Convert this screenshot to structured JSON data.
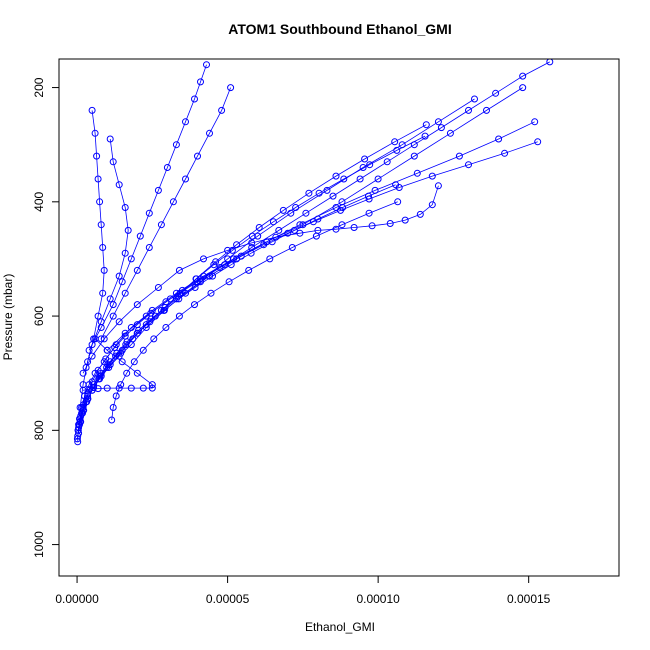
{
  "chart_data": {
    "type": "scatter",
    "title": "ATOM1 Southbound Ethanol_GMI",
    "xlabel": "Ethanol_GMI",
    "ylabel": "Pressure (mbar)",
    "xlim": [
      -6e-06,
      0.00018
    ],
    "ylim": [
      1055,
      150
    ],
    "y_reversed": true,
    "x_ticks": [
      0,
      5e-05,
      0.0001,
      0.00015
    ],
    "x_tick_labels": [
      "0.00000",
      "0.00005",
      "0.00010",
      "0.00015"
    ],
    "y_ticks": [
      200,
      400,
      600,
      800,
      1000
    ],
    "y_tick_labels": [
      "200",
      "400",
      "600",
      "800",
      "1000"
    ],
    "marker": "open-circle",
    "connect_points": true,
    "color": "#0000ff",
    "series": [
      {
        "x": [
          2e-07,
          4e-07,
          8e-07,
          1.5e-06,
          2.5e-06,
          4e-06,
          6e-06,
          9e-06,
          1.3e-05,
          1.8e-05,
          2.5e-05,
          3.3e-05,
          4.2e-05,
          5.2e-05,
          6.3e-05,
          7.5e-05,
          8.8e-05,
          0.0001,
          0.000112,
          0.000124,
          0.000136,
          0.000148
        ],
        "y": [
          820,
          800,
          780,
          760,
          740,
          720,
          700,
          680,
          650,
          620,
          590,
          560,
          530,
          500,
          470,
          440,
          400,
          360,
          320,
          280,
          240,
          200
        ]
      },
      {
        "x": [
          3e-07,
          1e-06,
          2e-06,
          3.5e-06,
          5.5e-06,
          8e-06,
          1.1e-05,
          1.5e-05,
          2e-05,
          2.6e-05,
          3.3e-05,
          4.1e-05,
          5e-05,
          6e-05,
          7.1e-05,
          8.3e-05,
          9.5e-05,
          0.000108,
          0.00012,
          0.000132
        ],
        "y": [
          800,
          780,
          760,
          740,
          720,
          700,
          680,
          660,
          630,
          600,
          570,
          540,
          500,
          460,
          420,
          380,
          340,
          300,
          260,
          220
        ]
      },
      {
        "x": [
          5e-07,
          1.5e-06,
          3e-06,
          5e-06,
          7.5e-06,
          1.05e-05,
          1.4e-05,
          1.8e-05,
          2.3e-05,
          2.9e-05,
          3.6e-05,
          4.4e-05,
          5.3e-05,
          6.3e-05,
          7.4e-05,
          8.6e-05,
          9.9e-05,
          0.000113,
          0.000127,
          0.00014,
          0.000152
        ],
        "y": [
          790,
          770,
          750,
          730,
          710,
          690,
          670,
          650,
          620,
          590,
          560,
          530,
          500,
          470,
          440,
          410,
          380,
          350,
          320,
          290,
          260
        ]
      },
      {
        "x": [
          1e-07,
          5e-07,
          1.2e-06,
          2.2e-06,
          3.5e-06,
          5e-06,
          7e-06,
          9.5e-06,
          1.25e-05,
          1.6e-05,
          2e-05,
          2.45e-05,
          2.95e-05,
          3.5e-05,
          4.1e-05,
          4.75e-05,
          5.45e-05,
          6.2e-05,
          7e-05,
          7.85e-05,
          8.75e-05,
          9.7e-05,
          0.000107,
          0.000118,
          0.00013,
          0.000142,
          0.000153
        ],
        "y": [
          815,
          795,
          775,
          755,
          735,
          715,
          695,
          675,
          655,
          635,
          615,
          595,
          575,
          555,
          535,
          515,
          495,
          475,
          455,
          435,
          415,
          395,
          375,
          355,
          335,
          315,
          295
        ]
      },
      {
        "x": [
          1e-06,
          2e-06,
          3.5e-06,
          5.5e-06,
          8e-06,
          1.1e-05,
          1.45e-05,
          1.85e-05,
          2.3e-05,
          2.8e-05,
          3.35e-05,
          3.95e-05,
          4.6e-05,
          5.3e-05,
          6.05e-05,
          6.85e-05,
          7.7e-05,
          8.6e-05,
          9.55e-05,
          0.0001055,
          0.000116
        ],
        "y": [
          785,
          765,
          745,
          725,
          705,
          685,
          665,
          640,
          615,
          590,
          565,
          535,
          505,
          475,
          445,
          415,
          385,
          355,
          325,
          295,
          265
        ]
      },
      {
        "x": [
          5e-07,
          1.2e-06,
          2.2e-06,
          3.6e-06,
          5.4e-06,
          7.6e-06,
          1.02e-05,
          1.32e-05,
          1.66e-05,
          2.04e-05,
          2.46e-05,
          2.92e-05,
          3.42e-05,
          3.96e-05,
          4.54e-05,
          5.16e-05,
          5.82e-05,
          6.52e-05,
          7.26e-05,
          8.04e-05,
          8.86e-05,
          9.72e-05,
          0.0001062,
          0.0001156
        ],
        "y": [
          805,
          785,
          765,
          745,
          725,
          705,
          685,
          665,
          645,
          625,
          605,
          585,
          560,
          535,
          510,
          485,
          460,
          435,
          410,
          385,
          360,
          335,
          310,
          285
        ]
      },
      {
        "x": [
          1.15e-05,
          1.2e-05,
          1.3e-05,
          1.45e-05,
          1.65e-05,
          1.9e-05,
          2.2e-05,
          2.55e-05,
          2.95e-05,
          3.4e-05,
          3.9e-05,
          4.45e-05,
          5.05e-05,
          5.7e-05,
          6.4e-05,
          7.15e-05,
          7.95e-05,
          8.8e-05,
          9.7e-05,
          0.0001065
        ],
        "y": [
          782,
          760,
          740,
          720,
          700,
          680,
          660,
          640,
          620,
          600,
          580,
          560,
          540,
          520,
          500,
          480,
          460,
          440,
          420,
          400
        ]
      },
      {
        "x": [
          2e-06,
          4e-06,
          7e-06,
          1e-05,
          1.4e-05,
          1.8e-05,
          2.2e-05,
          2.5e-05,
          2.5e-05,
          2e-05,
          1.5e-05,
          1e-05,
          6e-06
        ],
        "y": [
          730,
          728,
          727,
          726,
          726,
          726,
          726,
          726,
          720,
          700,
          680,
          660,
          640
        ]
      },
      {
        "x": [
          2e-07,
          8e-07,
          1.8e-06,
          3.2e-06,
          5e-06,
          7.2e-06,
          9.8e-06,
          1.28e-05,
          1.62e-05,
          2e-05,
          2.42e-05,
          2.88e-05,
          3.38e-05,
          3.92e-05,
          4.5e-05,
          5.12e-05,
          5.78e-05,
          6.48e-05,
          7.22e-05,
          8e-05,
          8.82e-05,
          9.68e-05,
          0.0001058
        ],
        "y": [
          810,
          790,
          770,
          750,
          730,
          710,
          690,
          670,
          650,
          630,
          610,
          590,
          570,
          550,
          530,
          510,
          490,
          470,
          450,
          430,
          410,
          390,
          370
        ]
      },
      {
        "x": [
          2e-06,
          5e-06,
          9e-06,
          1.4e-05,
          2e-05,
          2.7e-05,
          3.4e-05,
          4.2e-05,
          5e-05,
          5.8e-05,
          6.6e-05,
          7.4e-05,
          8e-05,
          8.6e-05,
          9.2e-05,
          9.8e-05,
          0.000104,
          0.000109,
          0.000114,
          0.000118,
          0.00012
        ],
        "y": [
          700,
          670,
          640,
          610,
          580,
          550,
          520,
          500,
          485,
          472,
          462,
          455,
          450,
          448,
          445,
          442,
          438,
          432,
          422,
          405,
          372
        ]
      },
      {
        "x": [
          3e-06,
          5e-06,
          8e-06,
          1.1e-05,
          1.4e-05,
          1.6e-05,
          1.7e-05,
          1.6e-05,
          1.4e-05,
          1.2e-05,
          1.1e-05
        ],
        "y": [
          690,
          650,
          610,
          570,
          530,
          490,
          450,
          410,
          370,
          330,
          290
        ]
      },
      {
        "x": [
          1e-06,
          2e-06,
          3.5e-06,
          5.5e-06,
          7e-06,
          8.5e-06,
          9e-06,
          8.5e-06,
          8e-06,
          7.5e-06,
          7e-06,
          6.5e-06,
          6e-06,
          5e-06
        ],
        "y": [
          760,
          720,
          680,
          640,
          600,
          560,
          520,
          480,
          440,
          400,
          360,
          320,
          280,
          240
        ]
      },
      {
        "x": [
          4e-06,
          8e-06,
          1.2e-05,
          1.5e-05,
          1.8e-05,
          2.1e-05,
          2.4e-05,
          2.7e-05,
          3e-05,
          3.3e-05,
          3.6e-05,
          3.9e-05,
          4.1e-05,
          4.3e-05
        ],
        "y": [
          660,
          620,
          580,
          540,
          500,
          460,
          420,
          380,
          340,
          300,
          260,
          220,
          190,
          160
        ]
      },
      {
        "x": [
          8e-06,
          1.2e-05,
          1.6e-05,
          2e-05,
          2.4e-05,
          2.8e-05,
          3.2e-05,
          3.6e-05,
          4e-05,
          4.4e-05,
          4.8e-05,
          5.1e-05
        ],
        "y": [
          640,
          600,
          560,
          520,
          480,
          440,
          400,
          360,
          320,
          280,
          240,
          200
        ]
      },
      {
        "x": [
          1e-05,
          1.6e-05,
          2.3e-05,
          3.1e-05,
          4e-05,
          4.9e-05,
          5.8e-05,
          6.7e-05,
          7.6e-05,
          8.5e-05,
          9.4e-05,
          0.000103,
          0.000112,
          0.000121,
          0.00013,
          0.000139,
          0.000148,
          0.000157
        ],
        "y": [
          660,
          630,
          600,
          570,
          540,
          510,
          480,
          450,
          420,
          390,
          360,
          330,
          300,
          270,
          240,
          210,
          180,
          155
        ]
      }
    ]
  }
}
